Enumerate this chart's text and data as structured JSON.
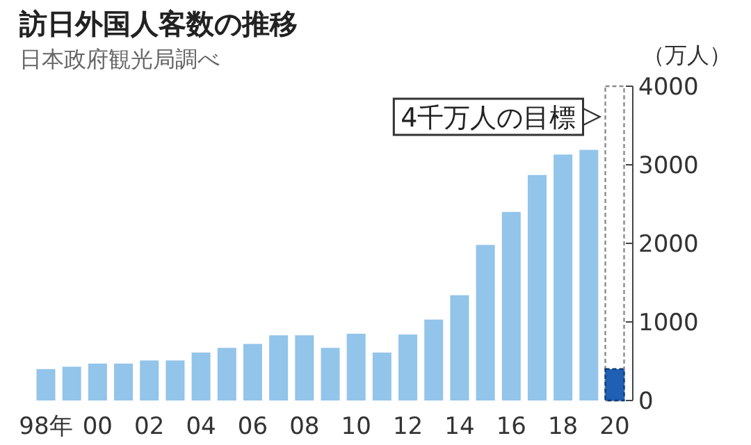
{
  "chart_data": {
    "type": "bar",
    "title": "訪日外国人客数の推移",
    "subtitle": "日本政府観光局調べ",
    "ylabel": "（万人）",
    "categories": [
      "98年",
      null,
      "00",
      null,
      "02",
      null,
      "04",
      null,
      "06",
      null,
      "08",
      null,
      "10",
      null,
      "12",
      null,
      "14",
      null,
      "16",
      null,
      "18",
      null,
      "20"
    ],
    "series": [
      {
        "color": "#8c8c8c",
        "line_style": "dashed",
        "values": [
          null,
          null,
          null,
          null,
          null,
          null,
          null,
          null,
          null,
          null,
          null,
          null,
          null,
          null,
          null,
          null,
          null,
          null,
          null,
          null,
          null,
          null,
          4000
        ]
      },
      {
        "color": "#93c4ea",
        "values": [
          400,
          430,
          470,
          470,
          510,
          510,
          610,
          670,
          720,
          830,
          830,
          670,
          850,
          610,
          840,
          1030,
          1340,
          1980,
          2400,
          2870,
          3130,
          3190,
          null
        ]
      },
      {
        "color": "#1f5fb4",
        "line_style": "dashed",
        "values": [
          null,
          null,
          null,
          null,
          null,
          null,
          null,
          null,
          null,
          null,
          null,
          null,
          null,
          null,
          null,
          null,
          null,
          null,
          null,
          null,
          null,
          null,
          400
        ]
      }
    ],
    "ylim": [
      0,
      4000
    ],
    "yticks": [
      0,
      1000,
      2000,
      3000,
      4000
    ],
    "annotations": [
      "4千万人の目標"
    ]
  }
}
